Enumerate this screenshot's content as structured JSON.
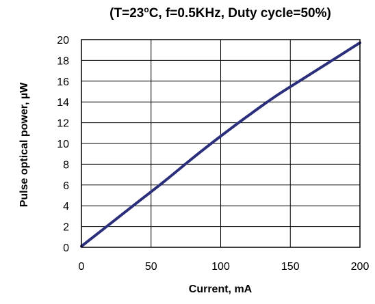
{
  "chart_data": {
    "type": "line",
    "title_main": "(T=23",
    "title_degree": "o",
    "title_rest": "C, f=0.5KHz, Duty cycle=50%)",
    "xlabel": "Current,  mA",
    "ylabel": "Pulse optical  power,  µW",
    "xlim": [
      0,
      200
    ],
    "ylim": [
      0,
      20
    ],
    "x_ticks": [
      0,
      50,
      100,
      150,
      200
    ],
    "y_ticks": [
      0,
      2,
      4,
      6,
      8,
      10,
      12,
      14,
      16,
      18,
      20
    ],
    "grid": true,
    "series": [
      {
        "color": "#2b2e7a",
        "x": [
          0,
          20,
          40,
          60,
          80,
          100,
          120,
          140,
          160,
          180,
          200
        ],
        "y": [
          0.1,
          2.2,
          4.3,
          6.4,
          8.6,
          10.7,
          12.7,
          14.6,
          16.3,
          18.0,
          19.7
        ]
      }
    ]
  }
}
